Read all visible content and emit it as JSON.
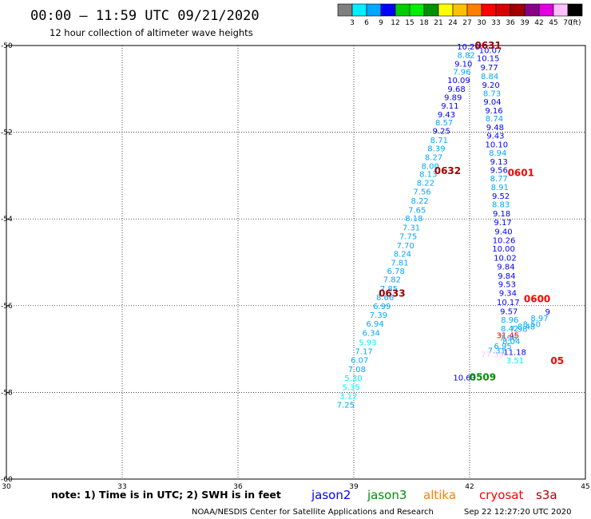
{
  "title": "00:00 – 11:59 UTC 09/21/2020",
  "subtitle": "12 hour collection of altimeter wave heights",
  "legend": {
    "colors": [
      "#7f7f7f",
      "#00f0ff",
      "#00a8ff",
      "#0000ff",
      "#00cc00",
      "#00ee00",
      "#009000",
      "#ffff00",
      "#ffc000",
      "#ff8000",
      "#ff0000",
      "#d80000",
      "#a00000",
      "#880088",
      "#e000e0",
      "#ffc0ff",
      "#000000"
    ],
    "labels": [
      "3",
      "6",
      "9",
      "12",
      "15",
      "18",
      "21",
      "24",
      "27",
      "30",
      "33",
      "36",
      "39",
      "42",
      "45",
      "70",
      "(ft)"
    ]
  },
  "note": "note: 1) Time is in UTC; 2) SWH is in feet",
  "satellites": [
    {
      "name": "jason2",
      "color": "#0000ff"
    },
    {
      "name": "jason3",
      "color": "#009000"
    },
    {
      "name": "altika",
      "color": "#ff8000"
    },
    {
      "name": "cryosat",
      "color": "#ff0000"
    },
    {
      "name": "s3a",
      "color": "#b00000"
    }
  ],
  "footer_left": "NOAA/NESDIS Center for Satellite Applications and Research",
  "footer_right": "Sep 22 12:27:20 UTC 2020",
  "chart_data": {
    "type": "scatter",
    "title": "00:00 – 11:59 UTC 09/21/2020",
    "xlim": [
      30,
      45
    ],
    "ylim": [
      -60,
      -50
    ],
    "xticks": [
      "30",
      "33",
      "36",
      "39",
      "42",
      "45"
    ],
    "yticks": [
      "-50",
      "-52",
      "-54",
      "-56",
      "-58",
      "-60"
    ],
    "grid": true,
    "points": [
      {
        "x": 41.97,
        "y": -50.02,
        "label": "10.20",
        "color": "#0000ff"
      },
      {
        "x": 42.54,
        "y": -50.1,
        "label": "10.07",
        "color": "#0000ff"
      },
      {
        "x": 41.91,
        "y": -50.21,
        "label": "8.82",
        "color": "#00a8ff"
      },
      {
        "x": 42.48,
        "y": -50.29,
        "label": "10.15",
        "color": "#0000ff"
      },
      {
        "x": 41.84,
        "y": -50.41,
        "label": "9.10",
        "color": "#0000ff"
      },
      {
        "x": 42.51,
        "y": -50.5,
        "label": "9.77",
        "color": "#0000ff"
      },
      {
        "x": 41.8,
        "y": -50.6,
        "label": "7.96",
        "color": "#00a8ff"
      },
      {
        "x": 42.52,
        "y": -50.7,
        "label": "8.84",
        "color": "#00a8ff"
      },
      {
        "x": 41.72,
        "y": -50.79,
        "label": "10.09",
        "color": "#0000ff"
      },
      {
        "x": 42.55,
        "y": -50.9,
        "label": "9.20",
        "color": "#0000ff"
      },
      {
        "x": 41.66,
        "y": -50.99,
        "label": "9.68",
        "color": "#0000ff"
      },
      {
        "x": 42.58,
        "y": -51.1,
        "label": "8.73",
        "color": "#00a8ff"
      },
      {
        "x": 41.57,
        "y": -51.19,
        "label": "9.89",
        "color": "#0000ff"
      },
      {
        "x": 42.59,
        "y": -51.29,
        "label": "9.04",
        "color": "#0000ff"
      },
      {
        "x": 41.49,
        "y": -51.38,
        "label": "9.11",
        "color": "#0000ff"
      },
      {
        "x": 42.63,
        "y": -51.49,
        "label": "9.16",
        "color": "#0000ff"
      },
      {
        "x": 41.4,
        "y": -51.58,
        "label": "9.43",
        "color": "#0000ff"
      },
      {
        "x": 42.64,
        "y": -51.68,
        "label": "8.74",
        "color": "#00a8ff"
      },
      {
        "x": 41.34,
        "y": -51.77,
        "label": "8.57",
        "color": "#00a8ff"
      },
      {
        "x": 42.66,
        "y": -51.88,
        "label": "9.48",
        "color": "#0000ff"
      },
      {
        "x": 41.27,
        "y": -51.96,
        "label": "9.25",
        "color": "#0000ff"
      },
      {
        "x": 42.67,
        "y": -52.07,
        "label": "9.43",
        "color": "#0000ff"
      },
      {
        "x": 41.21,
        "y": -52.17,
        "label": "8.71",
        "color": "#00a8ff"
      },
      {
        "x": 42.7,
        "y": -52.27,
        "label": "10.10",
        "color": "#0000ff"
      },
      {
        "x": 41.14,
        "y": -52.37,
        "label": "8.39",
        "color": "#00a8ff"
      },
      {
        "x": 42.73,
        "y": -52.47,
        "label": "8.94",
        "color": "#00a8ff"
      },
      {
        "x": 41.07,
        "y": -52.57,
        "label": "8.27",
        "color": "#00a8ff"
      },
      {
        "x": 42.76,
        "y": -52.67,
        "label": "9.13",
        "color": "#0000ff"
      },
      {
        "x": 40.98,
        "y": -52.77,
        "label": "8.00",
        "color": "#00a8ff"
      },
      {
        "x": 42.76,
        "y": -52.86,
        "label": "9.56",
        "color": "#0000ff"
      },
      {
        "x": 40.93,
        "y": -52.96,
        "label": "8.13",
        "color": "#00a8ff"
      },
      {
        "x": 42.76,
        "y": -53.06,
        "label": "8.77",
        "color": "#00a8ff"
      },
      {
        "x": 40.86,
        "y": -53.16,
        "label": "8.22",
        "color": "#00a8ff"
      },
      {
        "x": 42.78,
        "y": -53.26,
        "label": "8.91",
        "color": "#00a8ff"
      },
      {
        "x": 40.77,
        "y": -53.36,
        "label": "7.56",
        "color": "#00a8ff"
      },
      {
        "x": 42.81,
        "y": -53.46,
        "label": "9.52",
        "color": "#0000ff"
      },
      {
        "x": 40.71,
        "y": -53.57,
        "label": "8.22",
        "color": "#00a8ff"
      },
      {
        "x": 42.81,
        "y": -53.66,
        "label": "8.83",
        "color": "#00a8ff"
      },
      {
        "x": 40.64,
        "y": -53.78,
        "label": "7.65",
        "color": "#00a8ff"
      },
      {
        "x": 42.83,
        "y": -53.87,
        "label": "9.18",
        "color": "#0000ff"
      },
      {
        "x": 40.56,
        "y": -53.98,
        "label": "8.18",
        "color": "#00a8ff"
      },
      {
        "x": 42.86,
        "y": -54.07,
        "label": "9.17",
        "color": "#0000ff"
      },
      {
        "x": 40.49,
        "y": -54.19,
        "label": "7.31",
        "color": "#00a8ff"
      },
      {
        "x": 42.88,
        "y": -54.28,
        "label": "9.40",
        "color": "#0000ff"
      },
      {
        "x": 40.41,
        "y": -54.39,
        "label": "7.75",
        "color": "#00a8ff"
      },
      {
        "x": 42.89,
        "y": -54.48,
        "label": "10.26",
        "color": "#0000ff"
      },
      {
        "x": 40.34,
        "y": -54.6,
        "label": "7.70",
        "color": "#00a8ff"
      },
      {
        "x": 42.88,
        "y": -54.68,
        "label": "10.00",
        "color": "#0000ff"
      },
      {
        "x": 40.26,
        "y": -54.8,
        "label": "8.24",
        "color": "#00a8ff"
      },
      {
        "x": 42.92,
        "y": -54.89,
        "label": "10.02",
        "color": "#0000ff"
      },
      {
        "x": 40.19,
        "y": -55.0,
        "label": "7.81",
        "color": "#00a8ff"
      },
      {
        "x": 42.94,
        "y": -55.09,
        "label": "9.84",
        "color": "#0000ff"
      },
      {
        "x": 40.09,
        "y": -55.19,
        "label": "6.78",
        "color": "#00a8ff"
      },
      {
        "x": 42.96,
        "y": -55.3,
        "label": "9.84",
        "color": "#0000ff"
      },
      {
        "x": 39.99,
        "y": -55.39,
        "label": "7.82",
        "color": "#00a8ff"
      },
      {
        "x": 42.97,
        "y": -55.5,
        "label": "9.53",
        "color": "#0000ff"
      },
      {
        "x": 39.91,
        "y": -55.6,
        "label": "7.85",
        "color": "#00a8ff"
      },
      {
        "x": 42.99,
        "y": -55.7,
        "label": "9.34",
        "color": "#0000ff"
      },
      {
        "x": 39.81,
        "y": -55.8,
        "label": "8.66",
        "color": "#00a8ff"
      },
      {
        "x": 43.0,
        "y": -55.91,
        "label": "10.17",
        "color": "#0000ff"
      },
      {
        "x": 39.73,
        "y": -56.0,
        "label": "6.99",
        "color": "#00a8ff"
      },
      {
        "x": 43.02,
        "y": -56.12,
        "label": "9.57",
        "color": "#0000ff"
      },
      {
        "x": 39.64,
        "y": -56.21,
        "label": "7.39",
        "color": "#00a8ff"
      },
      {
        "x": 43.04,
        "y": -56.32,
        "label": "8.96",
        "color": "#00a8ff"
      },
      {
        "x": 39.55,
        "y": -56.41,
        "label": "6.94",
        "color": "#00a8ff"
      },
      {
        "x": 43.04,
        "y": -56.52,
        "label": "8.42",
        "color": "#00a8ff"
      },
      {
        "x": 39.45,
        "y": -56.62,
        "label": "6.34",
        "color": "#00a8ff"
      },
      {
        "x": 42.99,
        "y": -56.68,
        "label": "31.45",
        "color": "#ff0000"
      },
      {
        "x": 43.0,
        "y": -56.73,
        "label": "7.98",
        "color": "#00a8ff"
      },
      {
        "x": 43.08,
        "y": -56.81,
        "label": "8.04",
        "color": "#00a8ff"
      },
      {
        "x": 39.36,
        "y": -56.84,
        "label": "5.93",
        "color": "#00f0ff"
      },
      {
        "x": 42.86,
        "y": -56.92,
        "label": "6.95",
        "color": "#00a8ff"
      },
      {
        "x": 39.26,
        "y": -57.04,
        "label": "7.17",
        "color": "#00a8ff"
      },
      {
        "x": 42.7,
        "y": -57.03,
        "label": "7.31",
        "color": "#00a8ff"
      },
      {
        "x": 43.17,
        "y": -57.06,
        "label": "11.18",
        "color": "#0000ff"
      },
      {
        "x": 42.59,
        "y": -57.12,
        "label": "77.39",
        "color": "#ffc0ff"
      },
      {
        "x": 39.15,
        "y": -57.25,
        "label": "6.07",
        "color": "#00a8ff"
      },
      {
        "x": 43.18,
        "y": -57.26,
        "label": "3.51",
        "color": "#00f0ff"
      },
      {
        "x": 39.08,
        "y": -57.46,
        "label": "7.08",
        "color": "#00a8ff"
      },
      {
        "x": 38.99,
        "y": -57.66,
        "label": "5.30",
        "color": "#00f0ff"
      },
      {
        "x": 38.93,
        "y": -57.87,
        "label": "5.35",
        "color": "#00f0ff"
      },
      {
        "x": 38.86,
        "y": -58.08,
        "label": "3.12",
        "color": "#00f0ff"
      },
      {
        "x": 38.79,
        "y": -58.28,
        "label": "7.25",
        "color": "#00a8ff"
      },
      {
        "x": 41.87,
        "y": -57.65,
        "label": "10.63",
        "color": "#0000ff"
      },
      {
        "x": 43.27,
        "y": -56.53,
        "label": "7.98",
        "color": "#00a8ff"
      },
      {
        "x": 43.47,
        "y": -56.47,
        "label": "8.48",
        "color": "#00a8ff"
      },
      {
        "x": 43.61,
        "y": -56.42,
        "label": "8.50",
        "color": "#00a8ff"
      },
      {
        "x": 43.81,
        "y": -56.28,
        "label": "8.97",
        "color": "#00a8ff"
      },
      {
        "x": 44.02,
        "y": -56.13,
        "label": "9",
        "color": "#0000ff"
      }
    ],
    "passes": [
      {
        "x": 42.48,
        "y": -50.0,
        "label": "0631",
        "color": "#a00000"
      },
      {
        "x": 41.43,
        "y": -52.89,
        "label": "0632",
        "color": "#a00000"
      },
      {
        "x": 43.33,
        "y": -52.94,
        "label": "0601",
        "color": "#ff0000"
      },
      {
        "x": 39.99,
        "y": -55.72,
        "label": "0633",
        "color": "#a00000"
      },
      {
        "x": 43.75,
        "y": -55.85,
        "label": "0600",
        "color": "#ff0000"
      },
      {
        "x": 42.34,
        "y": -57.65,
        "label": "0509",
        "color": "#009000"
      },
      {
        "x": 44.27,
        "y": -57.27,
        "label": "05",
        "color": "#ff0000"
      }
    ]
  }
}
